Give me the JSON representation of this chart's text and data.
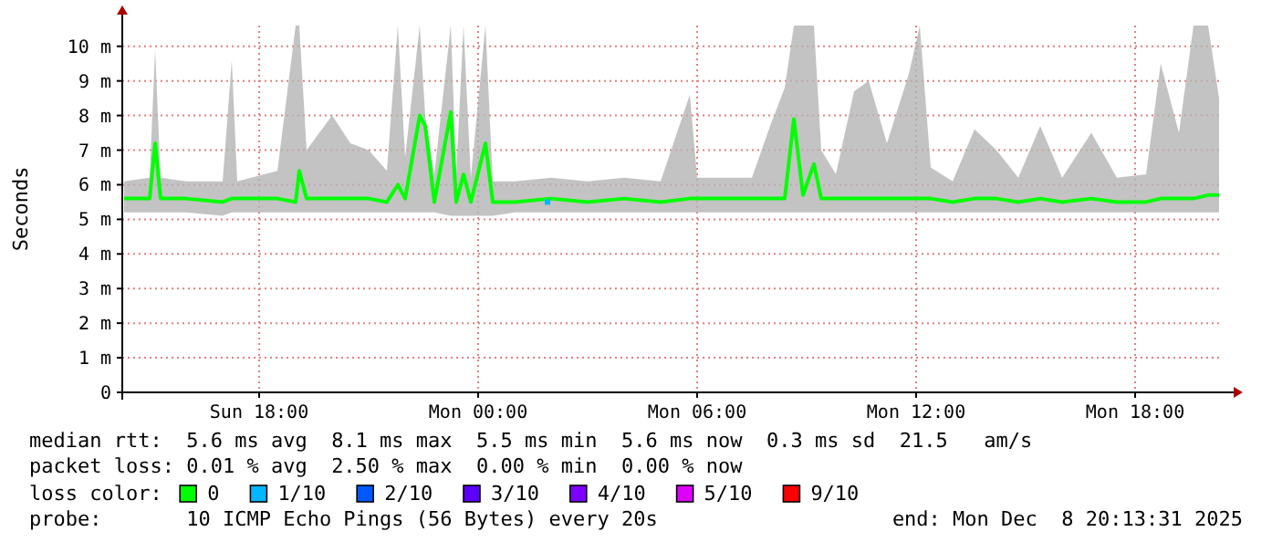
{
  "chart_data": {
    "type": "line",
    "ylabel": "Seconds",
    "legend_title": "loss color:",
    "legend": "bottom",
    "grid": true,
    "marker": "none",
    "xlim": [
      "2025-12-07T14:15",
      "2025-12-08T20:18"
    ],
    "xticks": [
      {
        "value": "2025-12-07T18:00",
        "label": "Sun 18:00"
      },
      {
        "value": "2025-12-08T00:00",
        "label": "Mon 00:00"
      },
      {
        "value": "2025-12-08T06:00",
        "label": "Mon 06:00"
      },
      {
        "value": "2025-12-08T12:00",
        "label": "Mon 12:00"
      },
      {
        "value": "2025-12-08T18:00",
        "label": "Mon 18:00"
      }
    ],
    "ylim": [
      0,
      10.6
    ],
    "yticks": [
      {
        "value": 0,
        "label": "0"
      },
      {
        "value": 1,
        "label": "1 m"
      },
      {
        "value": 2,
        "label": "2 m"
      },
      {
        "value": 3,
        "label": "3 m"
      },
      {
        "value": 4,
        "label": "4 m"
      },
      {
        "value": 5,
        "label": "5 m"
      },
      {
        "value": 6,
        "label": "6 m"
      },
      {
        "value": 7,
        "label": "7 m"
      },
      {
        "value": 8,
        "label": "8 m"
      },
      {
        "value": 9,
        "label": "9 m"
      },
      {
        "value": 10,
        "label": "10 m"
      }
    ],
    "series": [
      {
        "name": "0",
        "color": "#00ff00",
        "x": [
          "2025-12-07T14:18",
          "2025-12-07T15:00",
          "2025-12-07T15:09",
          "2025-12-07T15:18",
          "2025-12-07T16:00",
          "2025-12-07T17:00",
          "2025-12-07T17:15",
          "2025-12-07T17:24",
          "2025-12-07T18:30",
          "2025-12-07T19:00",
          "2025-12-07T19:06",
          "2025-12-07T19:18",
          "2025-12-07T20:00",
          "2025-12-07T20:30",
          "2025-12-07T21:00",
          "2025-12-07T21:30",
          "2025-12-07T21:48",
          "2025-12-07T22:00",
          "2025-12-07T22:24",
          "2025-12-07T22:33",
          "2025-12-07T22:48",
          "2025-12-07T23:15",
          "2025-12-07T23:24",
          "2025-12-07T23:36",
          "2025-12-07T23:48",
          "2025-12-08T00:12",
          "2025-12-08T00:24",
          "2025-12-08T01:00",
          "2025-12-08T02:00",
          "2025-12-08T03:00",
          "2025-12-08T04:00",
          "2025-12-08T05:00",
          "2025-12-08T05:48",
          "2025-12-08T06:00",
          "2025-12-08T07:30",
          "2025-12-08T08:00",
          "2025-12-08T08:24",
          "2025-12-08T08:39",
          "2025-12-08T08:54",
          "2025-12-08T09:12",
          "2025-12-08T09:24",
          "2025-12-08T09:48",
          "2025-12-08T10:18",
          "2025-12-08T10:42",
          "2025-12-08T11:12",
          "2025-12-08T11:48",
          "2025-12-08T12:06",
          "2025-12-08T12:24",
          "2025-12-08T13:00",
          "2025-12-08T13:36",
          "2025-12-08T14:12",
          "2025-12-08T14:48",
          "2025-12-08T15:24",
          "2025-12-08T16:00",
          "2025-12-08T16:48",
          "2025-12-08T17:30",
          "2025-12-08T18:18",
          "2025-12-08T18:42",
          "2025-12-08T19:12",
          "2025-12-08T19:36",
          "2025-12-08T20:00",
          "2025-12-08T20:18"
        ],
        "values": [
          5.6,
          5.6,
          7.2,
          5.6,
          5.6,
          5.5,
          5.6,
          5.6,
          5.6,
          5.5,
          6.4,
          5.6,
          5.6,
          5.6,
          5.6,
          5.5,
          6.0,
          5.6,
          8.0,
          7.7,
          5.5,
          8.1,
          5.5,
          6.3,
          5.5,
          7.2,
          5.5,
          5.5,
          5.6,
          5.5,
          5.6,
          5.5,
          5.6,
          5.6,
          5.6,
          5.6,
          5.6,
          7.9,
          5.7,
          6.6,
          5.6,
          5.6,
          5.6,
          5.6,
          5.6,
          5.6,
          5.6,
          5.6,
          5.5,
          5.6,
          5.6,
          5.5,
          5.6,
          5.5,
          5.6,
          5.5,
          5.5,
          5.6,
          5.6,
          5.6,
          5.7,
          5.7
        ],
        "lower": [
          5.2,
          5.2,
          5.2,
          5.2,
          5.2,
          5.1,
          5.2,
          5.2,
          5.2,
          5.2,
          5.2,
          5.2,
          5.2,
          5.2,
          5.2,
          5.2,
          5.2,
          5.2,
          5.2,
          5.2,
          5.2,
          5.1,
          5.1,
          5.1,
          5.1,
          5.1,
          5.1,
          5.2,
          5.2,
          5.2,
          5.2,
          5.2,
          5.2,
          5.2,
          5.2,
          5.2,
          5.2,
          5.2,
          5.2,
          5.2,
          5.2,
          5.2,
          5.2,
          5.2,
          5.2,
          5.2,
          5.2,
          5.2,
          5.2,
          5.2,
          5.2,
          5.2,
          5.2,
          5.2,
          5.2,
          5.2,
          5.2,
          5.2,
          5.2,
          5.2,
          5.2,
          5.2
        ],
        "upper": [
          6.1,
          6.2,
          9.9,
          6.2,
          6.1,
          6.1,
          9.6,
          6.1,
          6.4,
          10.6,
          10.6,
          7.0,
          8.0,
          7.2,
          7.0,
          6.4,
          10.6,
          6.8,
          10.6,
          8.0,
          6.3,
          10.6,
          6.3,
          10.6,
          6.2,
          10.6,
          6.1,
          6.1,
          6.2,
          6.1,
          6.2,
          6.1,
          8.6,
          6.2,
          6.2,
          7.7,
          8.8,
          10.6,
          10.6,
          10.6,
          7.0,
          6.3,
          8.7,
          9.0,
          7.2,
          9.2,
          10.6,
          6.5,
          6.1,
          7.6,
          7.0,
          6.2,
          7.7,
          6.2,
          7.5,
          6.2,
          6.3,
          9.5,
          7.5,
          10.6,
          10.6,
          8.5
        ]
      },
      {
        "name": "1/10",
        "type": "scatter",
        "marker": "square",
        "color": "#00b8ff",
        "x": [
          "2025-12-08T01:54"
        ],
        "values": [
          5.5
        ]
      },
      {
        "name": "2/10",
        "color": "#0059ff"
      },
      {
        "name": "3/10",
        "color": "#5e00ff"
      },
      {
        "name": "4/10",
        "color": "#7e00ff"
      },
      {
        "name": "5/10",
        "color": "#dd00ff"
      },
      {
        "name": "9/10",
        "color": "#ff0000"
      }
    ],
    "annotations": [
      "median rtt:  5.6 ms avg  8.1 ms max  5.5 ms min  5.6 ms now  0.3 ms sd  21.5   am/s",
      "packet loss: 0.01 % avg  2.50 % max  0.00 % min  0.00 % now",
      "probe:       10 ICMP Echo Pings (56 Bytes) every 20s",
      "end: Mon Dec  8 20:13:31 2025"
    ]
  }
}
